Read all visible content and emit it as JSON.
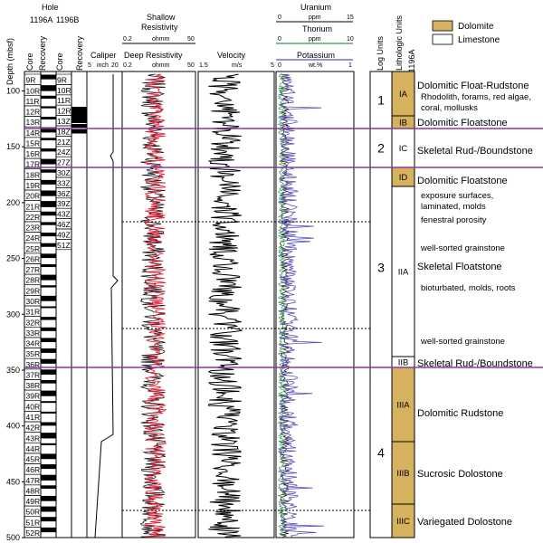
{
  "header": {
    "hole": "Hole",
    "hole_a": "1196A",
    "hole_b": "1196B",
    "depth_label": "Depth (mbsf)",
    "core": "Core",
    "recovery": "Recovery",
    "caliper": "Caliper",
    "caliper_scale": [
      "5",
      "inch",
      "20"
    ],
    "shallow_res": [
      "Shallow",
      "Resistivity"
    ],
    "shallow_scale": [
      "0.2",
      "ohmm",
      "50"
    ],
    "deep_res": "Deep Resistivity",
    "deep_scale": [
      "0.2",
      "ohmm",
      "50"
    ],
    "velocity": "Velocity",
    "velocity_scale": [
      "1.5",
      "m/s",
      "5"
    ],
    "uranium": "Uranium",
    "uranium_scale": [
      "0",
      "ppm",
      "15"
    ],
    "thorium": "Thorium",
    "thorium_scale": [
      "0",
      "ppm",
      "10"
    ],
    "potassium": "Potassium",
    "potassium_scale": [
      "0",
      "wt.%",
      "1"
    ],
    "log_units": "Log Units",
    "litho_units": "Lithologic Units",
    "litho_hole": "1196A"
  },
  "legend": {
    "dolomite": "Dolomite",
    "limestone": "Limestone"
  },
  "colors": {
    "dolomite": "#d6b25e",
    "shallow": "#111111",
    "deep": "#e0223a",
    "uranium": "#111111",
    "thorium": "#2a9a4a",
    "potassium": "#5a52b8",
    "boundary": "#8a3a9a"
  },
  "depth_ticks": [
    "100",
    "150",
    "200",
    "250",
    "300",
    "350",
    "400",
    "450",
    "500"
  ],
  "cores_a": [
    "9R",
    "10R",
    "11R",
    "12R",
    "13R",
    "14R",
    "15R",
    "16R",
    "17R",
    "18R",
    "19R",
    "20R",
    "21R",
    "22R",
    "23R",
    "24R",
    "25R",
    "26R",
    "27R",
    "28R",
    "29R",
    "30R",
    "31R",
    "32R",
    "33R",
    "34R",
    "35R",
    "36R",
    "37R",
    "38R",
    "39R",
    "40R",
    "41R",
    "42R",
    "43R",
    "44R",
    "45R",
    "46R",
    "47R",
    "48R",
    "49R",
    "50R",
    "51R",
    "52R"
  ],
  "cores_b": [
    "9R",
    "10R",
    "11R",
    "12R",
    "13Z",
    "18Z",
    "21Z",
    "24Z",
    "27Z",
    "30Z",
    "33Z",
    "36Z",
    "39Z",
    "43Z",
    "46Z",
    "49Z",
    "51Z"
  ],
  "log_units": [
    "1",
    "2",
    "3",
    "4"
  ],
  "litho_units": [
    "IA",
    "IB",
    "IC",
    "ID",
    "IIA",
    "IIB",
    "IIIA",
    "IIIB",
    "IIIC"
  ],
  "descriptions": {
    "ia_title": "Dolomitic Float-Rudstone",
    "ia_sub1": "Rhodolith, forams, red algae,",
    "ia_sub2": "coral, mollusks",
    "ib": "Dolomitic Floatstone",
    "ic": "Skeletal Rud-/Boundstone",
    "id": "Dolomitic Floatstone",
    "exposure1": "exposure surfaces,",
    "exposure2": "laminated, molds",
    "fenestral": "fenestral porosity",
    "grainstone1": "well-sorted grainstone",
    "iia": "Skeletal Floatstone",
    "bioturbated": "bioturbated, molds, roots",
    "grainstone2": "well-sorted grainstone",
    "iib": "Skeletal Rud-/Boundstone",
    "iiia": "Dolomitic Rudstone",
    "iiib": "Sucrosic Dolostone",
    "iiic": "Variegated Dolostone"
  }
}
